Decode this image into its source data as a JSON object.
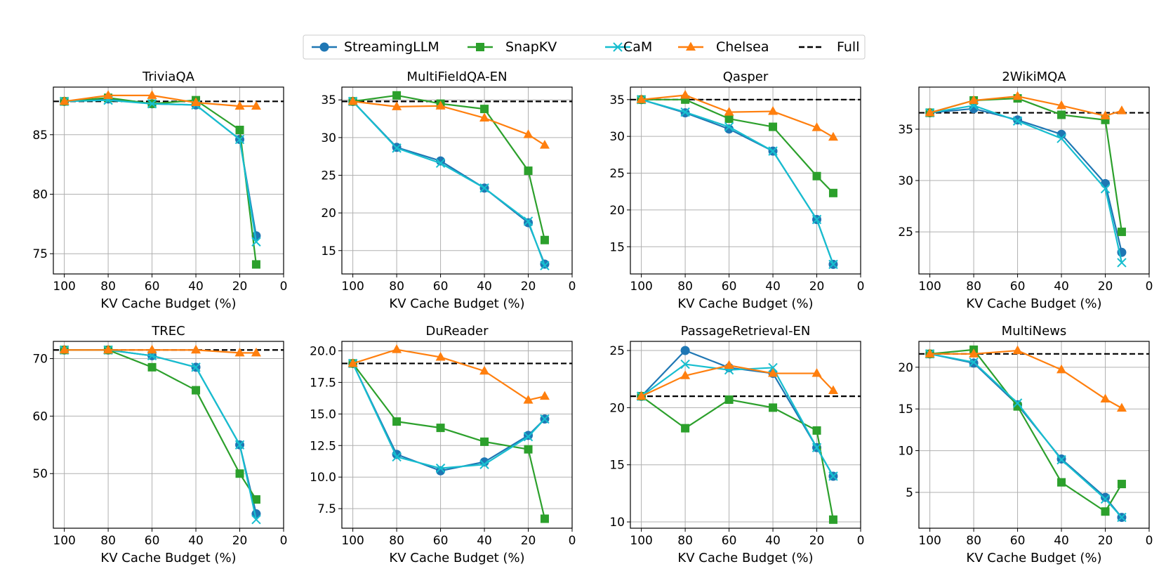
{
  "legend": {
    "entries": [
      {
        "name": "StreamingLLM",
        "color": "#1f77b4",
        "marker": "circle",
        "dash": false
      },
      {
        "name": "SnapKV",
        "color": "#2ca02c",
        "marker": "square",
        "dash": false
      },
      {
        "name": "CaM",
        "color": "#17becf",
        "marker": "x",
        "dash": false
      },
      {
        "name": "Chelsea",
        "color": "#ff7f0e",
        "marker": "triangle",
        "dash": false
      },
      {
        "name": "Full",
        "color": "#000000",
        "marker": "none",
        "dash": true
      }
    ]
  },
  "chart_data": [
    {
      "type": "line",
      "title": "TriviaQA",
      "xlabel": "KV Cache Budget (%)",
      "ylabel": "",
      "x": [
        100,
        80,
        60,
        40,
        20,
        12.5
      ],
      "xlim": [
        105,
        0
      ],
      "xticks": [
        100,
        80,
        60,
        40,
        20,
        0
      ],
      "ylim": [
        73.3,
        89.0
      ],
      "yticks": [
        75,
        80,
        85
      ],
      "grid": true,
      "full": 87.8,
      "series": [
        {
          "name": "StreamingLLM",
          "values": [
            87.8,
            88.0,
            87.6,
            87.5,
            84.6,
            76.5
          ]
        },
        {
          "name": "SnapKV",
          "values": [
            87.8,
            88.1,
            87.6,
            87.9,
            85.4,
            74.1
          ]
        },
        {
          "name": "CaM",
          "values": [
            87.8,
            87.9,
            87.6,
            87.5,
            84.6,
            76.0
          ]
        },
        {
          "name": "Chelsea",
          "values": [
            87.8,
            88.3,
            88.3,
            87.7,
            87.4,
            87.4
          ]
        }
      ]
    },
    {
      "type": "line",
      "title": "MultiFieldQA-EN",
      "xlabel": "KV Cache Budget (%)",
      "ylabel": "",
      "x": [
        100,
        80,
        60,
        40,
        20,
        12.5
      ],
      "xlim": [
        105,
        0
      ],
      "xticks": [
        100,
        80,
        60,
        40,
        20,
        0
      ],
      "ylim": [
        11.9,
        36.7
      ],
      "yticks": [
        15,
        20,
        25,
        30,
        35
      ],
      "grid": true,
      "full": 34.8,
      "series": [
        {
          "name": "StreamingLLM",
          "values": [
            34.8,
            28.7,
            26.9,
            23.3,
            18.7,
            13.2
          ]
        },
        {
          "name": "SnapKV",
          "values": [
            34.8,
            35.6,
            34.5,
            33.8,
            25.6,
            16.4
          ]
        },
        {
          "name": "CaM",
          "values": [
            34.8,
            28.6,
            26.6,
            23.3,
            18.9,
            13.0
          ]
        },
        {
          "name": "Chelsea",
          "values": [
            34.8,
            34.1,
            34.2,
            32.6,
            30.4,
            29.0
          ]
        }
      ]
    },
    {
      "type": "line",
      "title": "Qasper",
      "xlabel": "KV Cache Budget (%)",
      "ylabel": "",
      "x": [
        100,
        80,
        60,
        40,
        20,
        12.5
      ],
      "xlim": [
        105,
        0
      ],
      "xticks": [
        100,
        80,
        60,
        40,
        20,
        0
      ],
      "ylim": [
        11.3,
        36.7
      ],
      "yticks": [
        15,
        20,
        25,
        30,
        35
      ],
      "grid": true,
      "full": 35.0,
      "series": [
        {
          "name": "StreamingLLM",
          "values": [
            35.0,
            33.2,
            31.0,
            28.0,
            18.7,
            12.6
          ]
        },
        {
          "name": "SnapKV",
          "values": [
            35.0,
            35.0,
            32.4,
            31.3,
            24.6,
            22.3
          ]
        },
        {
          "name": "CaM",
          "values": [
            35.0,
            33.3,
            31.3,
            28.0,
            18.7,
            12.6
          ]
        },
        {
          "name": "Chelsea",
          "values": [
            35.0,
            35.6,
            33.3,
            33.4,
            31.2,
            29.9
          ]
        }
      ]
    },
    {
      "type": "line",
      "title": "2WikiMQA",
      "xlabel": "KV Cache Budget (%)",
      "ylabel": "",
      "x": [
        100,
        80,
        60,
        40,
        20,
        12.5
      ],
      "xlim": [
        105,
        0
      ],
      "xticks": [
        100,
        80,
        60,
        40,
        20,
        0
      ],
      "ylim": [
        20.9,
        39.1
      ],
      "yticks": [
        25,
        30,
        35
      ],
      "grid": true,
      "full": 36.6,
      "series": [
        {
          "name": "StreamingLLM",
          "values": [
            36.6,
            37.0,
            35.9,
            34.5,
            29.7,
            23.0
          ]
        },
        {
          "name": "SnapKV",
          "values": [
            36.6,
            37.8,
            38.0,
            36.4,
            35.9,
            25.0
          ]
        },
        {
          "name": "CaM",
          "values": [
            36.6,
            37.3,
            35.8,
            34.1,
            29.2,
            22.0
          ]
        },
        {
          "name": "Chelsea",
          "values": [
            36.6,
            37.8,
            38.2,
            37.3,
            36.3,
            36.8
          ]
        }
      ]
    },
    {
      "type": "line",
      "title": "TREC",
      "xlabel": "KV Cache Budget (%)",
      "ylabel": "",
      "x": [
        100,
        80,
        60,
        40,
        20,
        12.5
      ],
      "xlim": [
        105,
        0
      ],
      "xticks": [
        100,
        80,
        60,
        40,
        20,
        0
      ],
      "ylim": [
        40.5,
        73.0
      ],
      "yticks": [
        50,
        60,
        70
      ],
      "grid": true,
      "full": 71.5,
      "series": [
        {
          "name": "StreamingLLM",
          "values": [
            71.5,
            71.5,
            70.5,
            68.5,
            55.0,
            43.0
          ]
        },
        {
          "name": "SnapKV",
          "values": [
            71.5,
            71.5,
            68.5,
            64.5,
            50.0,
            45.5
          ]
        },
        {
          "name": "CaM",
          "values": [
            71.5,
            71.5,
            70.5,
            68.5,
            55.0,
            42.0
          ]
        },
        {
          "name": "Chelsea",
          "values": [
            71.5,
            71.5,
            71.5,
            71.5,
            71.0,
            71.0
          ]
        }
      ]
    },
    {
      "type": "line",
      "title": "DuReader",
      "xlabel": "KV Cache Budget (%)",
      "ylabel": "",
      "x": [
        100,
        80,
        60,
        40,
        20,
        12.5
      ],
      "xlim": [
        105,
        0
      ],
      "xticks": [
        100,
        80,
        60,
        40,
        20,
        0
      ],
      "ylim": [
        5.95,
        20.75
      ],
      "yticks": [
        7.5,
        10.0,
        12.5,
        15.0,
        17.5,
        20.0
      ],
      "ytick_decimals": 1,
      "grid": true,
      "full": 19.0,
      "series": [
        {
          "name": "StreamingLLM",
          "values": [
            19.0,
            11.8,
            10.5,
            11.2,
            13.3,
            14.6
          ]
        },
        {
          "name": "SnapKV",
          "values": [
            19.0,
            14.4,
            13.9,
            12.8,
            12.2,
            6.7
          ]
        },
        {
          "name": "CaM",
          "values": [
            19.0,
            11.6,
            10.7,
            11.0,
            13.2,
            14.6
          ]
        },
        {
          "name": "Chelsea",
          "values": [
            19.0,
            20.1,
            19.5,
            18.4,
            16.1,
            16.4
          ]
        }
      ]
    },
    {
      "type": "line",
      "title": "PassageRetrieval-EN",
      "xlabel": "KV Cache Budget (%)",
      "ylabel": "",
      "x": [
        100,
        80,
        60,
        40,
        20,
        12.5
      ],
      "xlim": [
        105,
        0
      ],
      "xticks": [
        100,
        80,
        60,
        40,
        20,
        0
      ],
      "ylim": [
        9.45,
        25.8
      ],
      "yticks": [
        10,
        15,
        20,
        25
      ],
      "grid": true,
      "full": 21.0,
      "series": [
        {
          "name": "StreamingLLM",
          "values": [
            21.0,
            25.0,
            23.5,
            23.0,
            16.5,
            14.0
          ]
        },
        {
          "name": "SnapKV",
          "values": [
            21.0,
            18.2,
            20.7,
            20.0,
            18.0,
            10.2
          ]
        },
        {
          "name": "CaM",
          "values": [
            21.0,
            23.8,
            23.3,
            23.5,
            16.5,
            14.0
          ]
        },
        {
          "name": "Chelsea",
          "values": [
            21.0,
            22.8,
            23.7,
            23.0,
            23.0,
            21.5
          ]
        }
      ]
    },
    {
      "type": "line",
      "title": "MultiNews",
      "xlabel": "KV Cache Budget (%)",
      "ylabel": "",
      "x": [
        100,
        80,
        60,
        40,
        20,
        12.5
      ],
      "xlim": [
        105,
        0
      ],
      "xticks": [
        100,
        80,
        60,
        40,
        20,
        0
      ],
      "ylim": [
        0.7,
        23.1
      ],
      "yticks": [
        5,
        10,
        15,
        20
      ],
      "grid": true,
      "full": 21.6,
      "series": [
        {
          "name": "StreamingLLM",
          "values": [
            21.6,
            20.5,
            15.5,
            9.0,
            4.4,
            2.0
          ]
        },
        {
          "name": "SnapKV",
          "values": [
            21.6,
            22.1,
            15.3,
            6.2,
            2.7,
            6.0
          ]
        },
        {
          "name": "CaM",
          "values": [
            21.6,
            20.6,
            15.7,
            8.9,
            4.2,
            2.0
          ]
        },
        {
          "name": "Chelsea",
          "values": [
            21.6,
            21.6,
            22.0,
            19.7,
            16.2,
            15.1
          ]
        }
      ]
    }
  ]
}
